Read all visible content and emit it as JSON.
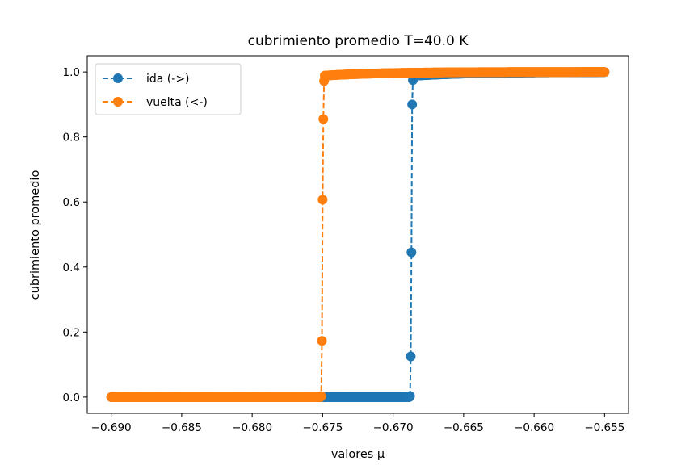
{
  "chart_data": {
    "type": "line",
    "title": "cubrimiento promedio T=40.0 K",
    "xlabel": "valores μ",
    "ylabel": "cubrimiento promedio",
    "xlim": [
      -0.6917,
      -0.6533
    ],
    "ylim": [
      -0.05,
      1.05
    ],
    "x_ticks": [
      -0.69,
      -0.685,
      -0.68,
      -0.675,
      -0.67,
      -0.665,
      -0.66,
      -0.655
    ],
    "x_tick_labels": [
      "−0.690",
      "−0.685",
      "−0.680",
      "−0.675",
      "−0.670",
      "−0.665",
      "−0.660",
      "−0.655"
    ],
    "y_ticks": [
      0.0,
      0.2,
      0.4,
      0.6,
      0.8,
      1.0
    ],
    "y_tick_labels": [
      "0.0",
      "0.2",
      "0.4",
      "0.6",
      "0.8",
      "1.0"
    ],
    "grid": false,
    "legend_position": "top-left",
    "series": [
      {
        "name": "ida (->)",
        "color": "#1f77b4",
        "line_style": "dashed",
        "marker": "circle",
        "x_start": -0.69,
        "x_end": -0.655,
        "x_step": 5e-05,
        "transition": [
          {
            "x": -0.6688,
            "y": 0.003
          },
          {
            "x": -0.66875,
            "y": 0.125
          },
          {
            "x": -0.6687,
            "y": 0.445
          },
          {
            "x": -0.66865,
            "y": 0.9
          },
          {
            "x": -0.6686,
            "y": 0.975
          }
        ],
        "low_value": 0.0,
        "high_value": 1.0
      },
      {
        "name": "vuelta (<-)",
        "color": "#ff7f0e",
        "line_style": "dashed",
        "marker": "circle",
        "x_start": -0.655,
        "x_end": -0.69,
        "x_step": 5e-05,
        "transition": [
          {
            "x": -0.6749,
            "y": 0.972
          },
          {
            "x": -0.67495,
            "y": 0.855
          },
          {
            "x": -0.675,
            "y": 0.607
          },
          {
            "x": -0.67505,
            "y": 0.173
          },
          {
            "x": -0.6751,
            "y": 0.003
          }
        ],
        "low_value": 0.0,
        "high_value": 1.0
      }
    ]
  }
}
